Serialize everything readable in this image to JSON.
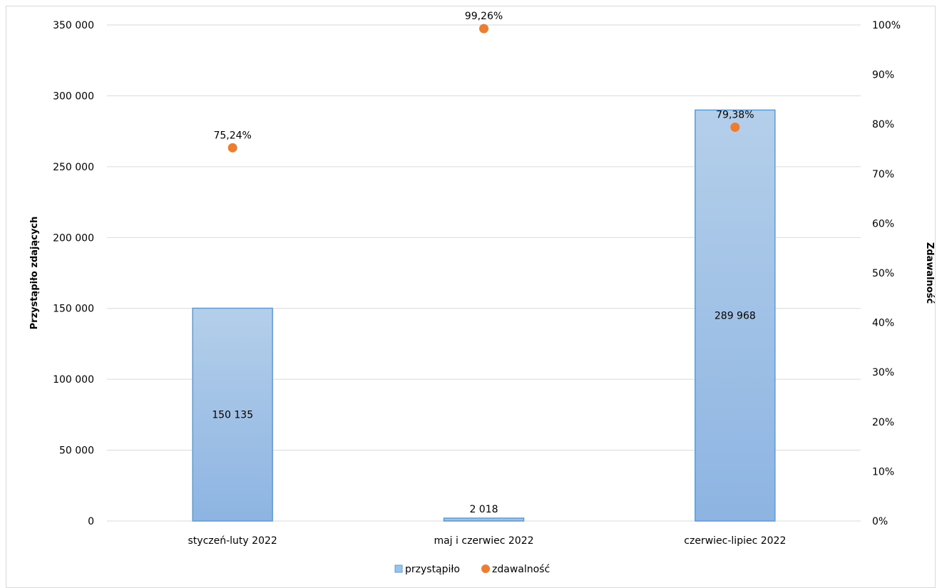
{
  "chart_data": {
    "type": "bar",
    "categories": [
      "styczeń-luty 2022",
      "maj i czerwiec 2022",
      "czerwiec-lipiec 2022"
    ],
    "series": [
      {
        "name": "przystąpiło",
        "type": "bar",
        "axis": "left",
        "values": [
          150135,
          2018,
          289968
        ],
        "labels": [
          "150 135",
          "2 018",
          "289 968"
        ],
        "color": "#9dc3e6"
      },
      {
        "name": "zdawalność",
        "type": "scatter",
        "axis": "right",
        "values": [
          75.24,
          99.26,
          79.38
        ],
        "labels": [
          "75,24%",
          "99,26%",
          "79,38%"
        ],
        "color": "#ed7d31"
      }
    ],
    "ylabel": "Przystąpiło zdających",
    "y2label": "Zdawalność",
    "ylim": [
      0,
      350000
    ],
    "y2lim": [
      0,
      100
    ],
    "yticks": [
      0,
      50000,
      100000,
      150000,
      200000,
      250000,
      300000,
      350000
    ],
    "ytick_labels": [
      "0",
      "50 000",
      "100 000",
      "150 000",
      "200 000",
      "250 000",
      "300 000",
      "350 000"
    ],
    "y2ticks": [
      0,
      10,
      20,
      30,
      40,
      50,
      60,
      70,
      80,
      90,
      100
    ],
    "y2tick_labels": [
      "0%",
      "10%",
      "20%",
      "30%",
      "40%",
      "50%",
      "60%",
      "70%",
      "80%",
      "90%",
      "100%"
    ],
    "grid": true,
    "legend_position": "bottom",
    "gridline_color": "#d9d9d9",
    "bar_border_color": "#5b9bd5",
    "bar_gradient_top": "#b4cfea",
    "bar_gradient_bottom": "#8db4e2"
  }
}
